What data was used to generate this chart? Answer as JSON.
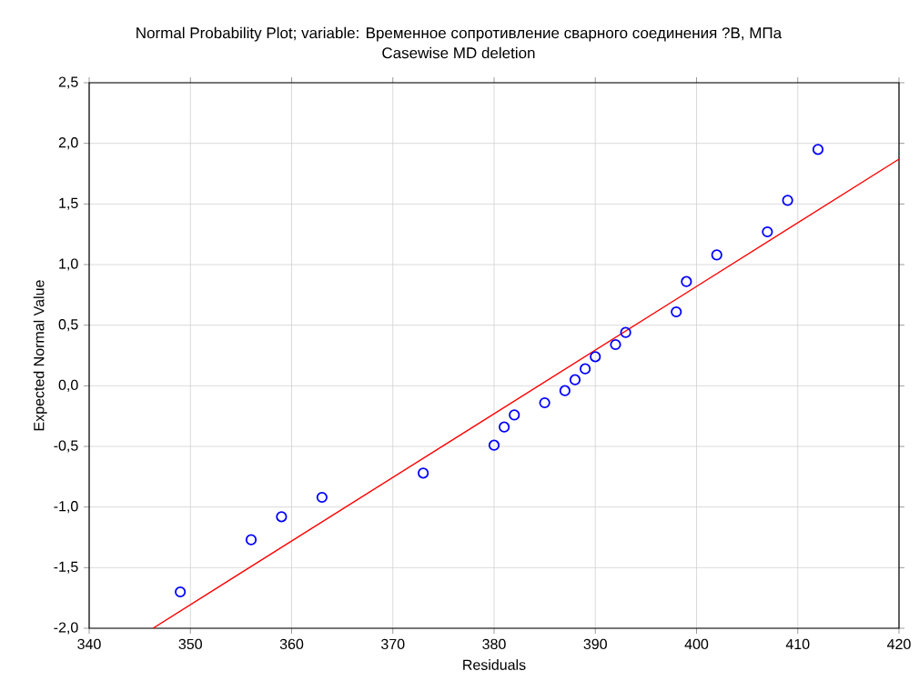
{
  "chart_data": {
    "type": "scatter",
    "title": "Normal Probability Plot; variable: Временное сопротивление сварного соединения ?В, МПа",
    "subtitle": "Casewise MD deletion",
    "xlabel": "Residuals",
    "ylabel": "Expected Normal Value",
    "xlim": [
      340,
      420
    ],
    "xticks": [
      340,
      350,
      360,
      370,
      380,
      390,
      400,
      410,
      420
    ],
    "ylim": [
      -2.0,
      2.5
    ],
    "yticks": [
      {
        "value": -2.0,
        "label": "-2,0"
      },
      {
        "value": -1.5,
        "label": "-1,5"
      },
      {
        "value": -1.0,
        "label": "-1,0"
      },
      {
        "value": -0.5,
        "label": "-0,5"
      },
      {
        "value": 0.0,
        "label": "0,0"
      },
      {
        "value": 0.5,
        "label": "0,5"
      },
      {
        "value": 1.0,
        "label": "1,0"
      },
      {
        "value": 1.5,
        "label": "1,5"
      },
      {
        "value": 2.0,
        "label": "2,0"
      },
      {
        "value": 2.5,
        "label": "2,5"
      }
    ],
    "grid": true,
    "series": [
      {
        "marker": "circle",
        "color": "#0000ff",
        "x": [
          349,
          356,
          359,
          363,
          373,
          380,
          381,
          382,
          385,
          387,
          388,
          389,
          390,
          392,
          393,
          398,
          399,
          402,
          407,
          409,
          412
        ],
        "values": [
          -1.7,
          -1.27,
          -1.08,
          -0.92,
          -0.72,
          -0.49,
          -0.34,
          -0.24,
          -0.14,
          -0.04,
          0.05,
          0.14,
          0.24,
          0.34,
          0.44,
          0.61,
          0.86,
          1.08,
          1.27,
          1.53,
          1.95
        ]
      },
      {
        "type": "line",
        "marker": "none",
        "color": "#ff0000",
        "line_style": "solid",
        "x": [
          346.3,
          420
        ],
        "values": [
          -2.0,
          1.87
        ]
      }
    ]
  }
}
